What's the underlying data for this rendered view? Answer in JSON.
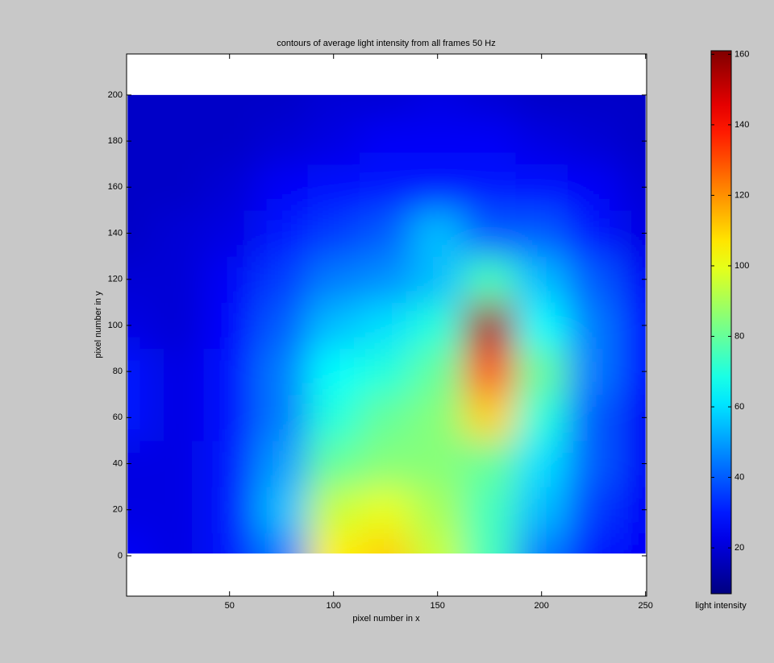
{
  "chart_data": {
    "type": "heatmap",
    "title": "contours of average light intensity from all frames 50 Hz",
    "x_label": "pixel number in x",
    "y_label": "pixel number in y",
    "x": [
      0,
      25,
      50,
      75,
      100,
      125,
      150,
      175,
      200,
      225,
      250
    ],
    "y": [
      0,
      20,
      40,
      60,
      80,
      100,
      120,
      140,
      160,
      180,
      200
    ],
    "z": [
      [
        25,
        22,
        30,
        45,
        105,
        110,
        95,
        75,
        45,
        30,
        25
      ],
      [
        22,
        22,
        30,
        55,
        95,
        100,
        90,
        75,
        55,
        35,
        25
      ],
      [
        22,
        22,
        30,
        50,
        80,
        85,
        85,
        80,
        60,
        40,
        25
      ],
      [
        30,
        22,
        28,
        45,
        70,
        80,
        85,
        110,
        70,
        40,
        25
      ],
      [
        30,
        22,
        28,
        45,
        65,
        70,
        80,
        130,
        80,
        45,
        28
      ],
      [
        22,
        20,
        26,
        40,
        55,
        60,
        70,
        155,
        65,
        45,
        28
      ],
      [
        20,
        20,
        25,
        35,
        45,
        48,
        55,
        75,
        55,
        40,
        25
      ],
      [
        18,
        20,
        22,
        30,
        35,
        40,
        55,
        40,
        40,
        30,
        22
      ],
      [
        18,
        18,
        20,
        25,
        28,
        30,
        30,
        30,
        28,
        25,
        20
      ],
      [
        18,
        18,
        18,
        20,
        22,
        25,
        25,
        25,
        22,
        20,
        18
      ],
      [
        18,
        18,
        18,
        18,
        20,
        20,
        22,
        20,
        18,
        18,
        18
      ]
    ],
    "xlim": [
      0.5,
      250.5
    ],
    "ylim": [
      -17.5,
      217.8
    ],
    "data_extent": [
      1,
      250,
      1,
      200
    ],
    "xticks": [
      50,
      100,
      150,
      200,
      250
    ],
    "yticks": [
      0,
      20,
      40,
      60,
      80,
      100,
      120,
      140,
      160,
      180,
      200
    ],
    "colormap": "jet",
    "clim": [
      7,
      161
    ],
    "colorbar_ticks": [
      20,
      40,
      60,
      80,
      100,
      120,
      140,
      160
    ],
    "colorbar_label": "light intensity"
  }
}
